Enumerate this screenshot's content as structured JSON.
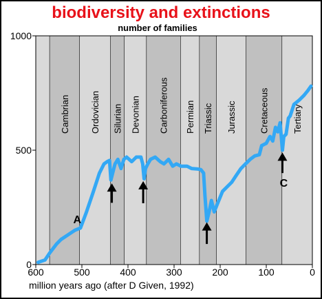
{
  "chart_data": {
    "type": "line",
    "title": "biodiversity and extinctions",
    "subtitle": "number of families",
    "xlabel": "million years ago  (after D Given, 1992)",
    "ylabel": "",
    "xlim": [
      600,
      0
    ],
    "ylim": [
      0,
      1000
    ],
    "x_ticks": [
      "600",
      "500",
      "400",
      "300",
      "200",
      "100",
      "0"
    ],
    "y_ticks": [
      "0",
      "500",
      "1000"
    ],
    "periods": [
      {
        "name": "Cambrian",
        "start": 570,
        "end": 505,
        "shaded": true
      },
      {
        "name": "Ordovician",
        "start": 505,
        "end": 438,
        "shaded": false
      },
      {
        "name": "Silurian",
        "start": 438,
        "end": 408,
        "shaded": true
      },
      {
        "name": "Devonian",
        "start": 408,
        "end": 360,
        "shaded": false
      },
      {
        "name": "Carboniferous",
        "start": 360,
        "end": 286,
        "shaded": true
      },
      {
        "name": "Permian",
        "start": 286,
        "end": 245,
        "shaded": false
      },
      {
        "name": "Triassic",
        "start": 245,
        "end": 208,
        "shaded": true
      },
      {
        "name": "Jurassic",
        "start": 208,
        "end": 144,
        "shaded": false
      },
      {
        "name": "Cretaceous",
        "start": 144,
        "end": 66,
        "shaded": true
      },
      {
        "name": "Tertiary",
        "start": 66,
        "end": 0,
        "shaded": false
      }
    ],
    "series": [
      {
        "color": "#33a8f5",
        "points": [
          [
            595,
            10
          ],
          [
            580,
            20
          ],
          [
            570,
            50
          ],
          [
            555,
            90
          ],
          [
            545,
            110
          ],
          [
            530,
            130
          ],
          [
            515,
            150
          ],
          [
            503,
            160
          ],
          [
            490,
            230
          ],
          [
            475,
            320
          ],
          [
            462,
            400
          ],
          [
            452,
            440
          ],
          [
            445,
            450
          ],
          [
            440,
            455
          ],
          [
            437,
            370
          ],
          [
            432,
            410
          ],
          [
            428,
            440
          ],
          [
            422,
            460
          ],
          [
            415,
            420
          ],
          [
            409,
            460
          ],
          [
            403,
            470
          ],
          [
            392,
            450
          ],
          [
            382,
            470
          ],
          [
            372,
            470
          ],
          [
            368,
            440
          ],
          [
            365,
            375
          ],
          [
            362,
            420
          ],
          [
            357,
            440
          ],
          [
            351,
            460
          ],
          [
            341,
            470
          ],
          [
            330,
            450
          ],
          [
            322,
            440
          ],
          [
            312,
            460
          ],
          [
            303,
            430
          ],
          [
            295,
            440
          ],
          [
            285,
            430
          ],
          [
            272,
            430
          ],
          [
            262,
            420
          ],
          [
            250,
            418
          ],
          [
            242,
            415
          ],
          [
            236,
            400
          ],
          [
            233,
            300
          ],
          [
            229,
            190
          ],
          [
            224,
            230
          ],
          [
            219,
            280
          ],
          [
            213,
            230
          ],
          [
            205,
            270
          ],
          [
            195,
            320
          ],
          [
            185,
            340
          ],
          [
            175,
            360
          ],
          [
            165,
            390
          ],
          [
            155,
            420
          ],
          [
            145,
            440
          ],
          [
            135,
            460
          ],
          [
            125,
            475
          ],
          [
            115,
            480
          ],
          [
            110,
            520
          ],
          [
            100,
            530
          ],
          [
            92,
            560
          ],
          [
            86,
            540
          ],
          [
            80,
            600
          ],
          [
            75,
            580
          ],
          [
            70,
            620
          ],
          [
            65,
            500
          ],
          [
            62,
            560
          ],
          [
            57,
            570
          ],
          [
            52,
            640
          ],
          [
            48,
            650
          ],
          [
            40,
            700
          ],
          [
            28,
            720
          ],
          [
            18,
            740
          ],
          [
            10,
            760
          ],
          [
            3,
            780
          ]
        ]
      }
    ],
    "annotations": [
      {
        "text": "A",
        "x": 510,
        "y": 180
      },
      {
        "text": "C",
        "x": 62,
        "y": 340
      }
    ],
    "arrows": [
      {
        "x": 435,
        "y_tip": 355,
        "y_tail": 270
      },
      {
        "x": 367,
        "y_tip": 365,
        "y_tail": 268
      },
      {
        "x": 229,
        "y_tip": 185,
        "y_tail": 90
      },
      {
        "x": 65,
        "y_tip": 490,
        "y_tail": 400
      }
    ],
    "grid": false,
    "legend": "none"
  },
  "colors": {
    "title": "#e8121a",
    "line": "#33a8f5",
    "plot_bg": "#d9d9d9",
    "band_bg": "#c0c0c0",
    "axis": "#000000",
    "arrow": "#000000"
  }
}
